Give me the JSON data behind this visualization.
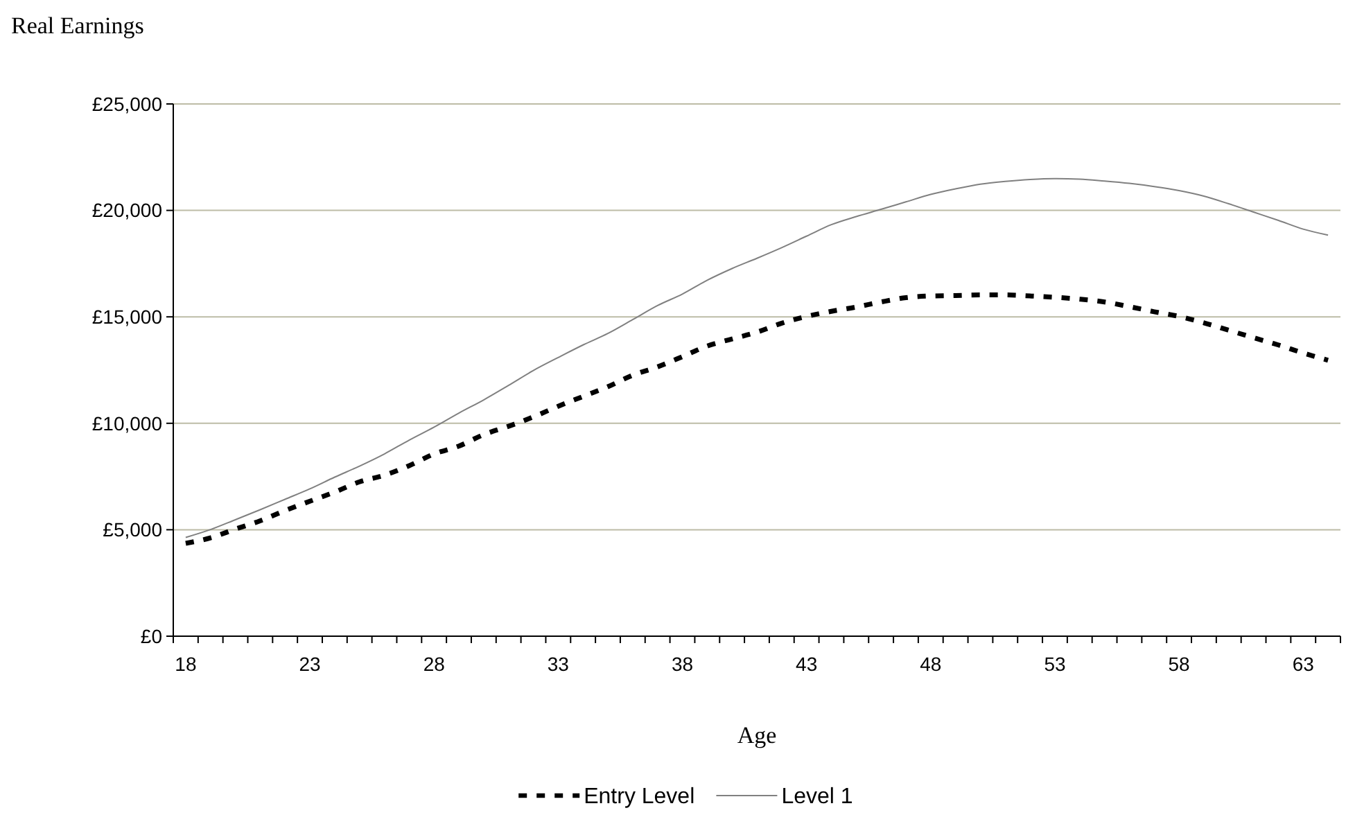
{
  "chart_data": {
    "type": "line",
    "title": "Real Earnings",
    "xlabel": "Age",
    "categories": [
      "18",
      null,
      null,
      null,
      null,
      "23",
      null,
      null,
      null,
      null,
      "28",
      null,
      null,
      null,
      null,
      "33",
      null,
      null,
      null,
      null,
      "38",
      null,
      null,
      null,
      null,
      "43",
      null,
      null,
      null,
      null,
      "48",
      null,
      null,
      null,
      null,
      "53",
      null,
      null,
      null,
      null,
      "58",
      null,
      null,
      null,
      null,
      "63",
      null
    ],
    "series": [
      {
        "name": "Entry Level",
        "color": "#000000",
        "line_style": "dashed",
        "values": [
          4360,
          4620,
          5030,
          5420,
          5900,
          6340,
          6770,
          7250,
          7560,
          8010,
          8560,
          8930,
          9470,
          9860,
          10300,
          10800,
          11260,
          11720,
          12260,
          12650,
          13130,
          13630,
          13960,
          14280,
          14700,
          15020,
          15260,
          15460,
          15700,
          15900,
          15980,
          16000,
          16030,
          16030,
          15980,
          15920,
          15830,
          15700,
          15480,
          15240,
          15020,
          14720,
          14370,
          14020,
          13680,
          13300,
          12960
        ]
      },
      {
        "name": "Level 1",
        "color": "#808080",
        "line_style": "solid",
        "values": [
          4640,
          5010,
          5470,
          5940,
          6430,
          6920,
          7470,
          7990,
          8560,
          9210,
          9820,
          10480,
          11100,
          11780,
          12480,
          13090,
          13680,
          14220,
          14870,
          15530,
          16070,
          16720,
          17270,
          17750,
          18250,
          18790,
          19330,
          19710,
          20050,
          20400,
          20750,
          21010,
          21230,
          21360,
          21450,
          21490,
          21470,
          21380,
          21270,
          21120,
          20930,
          20670,
          20310,
          19920,
          19530,
          19120,
          18840
        ]
      }
    ],
    "ylim": [
      0,
      25000
    ],
    "yticks": [
      {
        "value": 0,
        "label": "£0"
      },
      {
        "value": 5000,
        "label": "£5,000"
      },
      {
        "value": 10000,
        "label": "£10,000"
      },
      {
        "value": 15000,
        "label": "£15,000"
      },
      {
        "value": 20000,
        "label": "£20,000"
      },
      {
        "value": 25000,
        "label": "£25,000"
      }
    ],
    "grid": "y",
    "legend": "bottom",
    "marker": "none"
  }
}
